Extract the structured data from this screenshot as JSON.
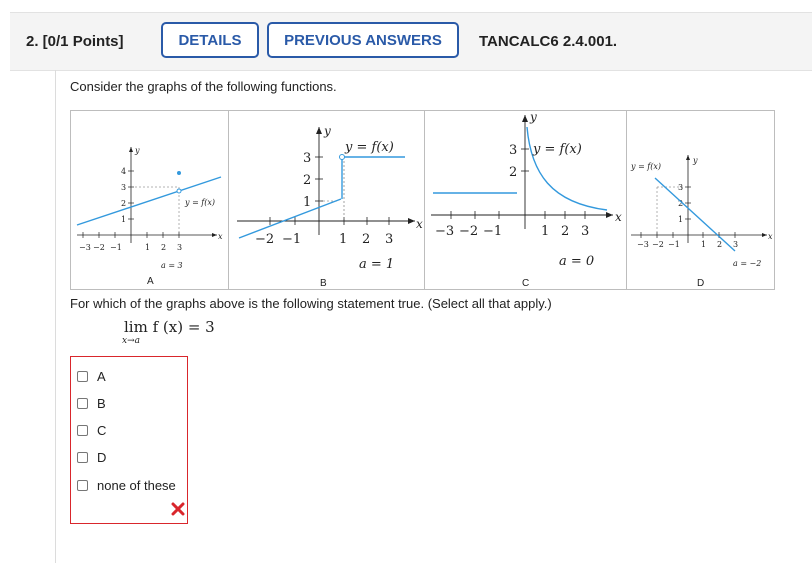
{
  "header": {
    "question_number": "2. [0/1 Points]",
    "details_label": "DETAILS",
    "previous_answers_label": "PREVIOUS ANSWERS",
    "question_code": "TANCALC6 2.4.001."
  },
  "prompt": {
    "intro": "Consider the graphs of the following functions.",
    "question": "For which of the graphs above is the following statement true. (Select all that apply.)",
    "statement_main": "lim  f (x) = 3",
    "statement_sub": "x→a"
  },
  "graphs": [
    {
      "id": "A",
      "caption": "a = 3",
      "func_label": "y = f(x)"
    },
    {
      "id": "B",
      "caption": "a = 1",
      "func_label": "y = f(x)"
    },
    {
      "id": "C",
      "caption": "a = 0",
      "func_label": "y = f(x)"
    },
    {
      "id": "D",
      "caption": "a = −2",
      "func_label": "y = f(x)"
    }
  ],
  "choices": [
    {
      "label": "A",
      "checked": false
    },
    {
      "label": "B",
      "checked": false
    },
    {
      "label": "C",
      "checked": false
    },
    {
      "label": "D",
      "checked": false
    },
    {
      "label": "none of these",
      "checked": false
    }
  ],
  "result": {
    "icon": "incorrect-x-icon",
    "color": "#d9262c"
  },
  "colors": {
    "accent": "#2a5aa8",
    "curve": "#3399dd",
    "error": "#d9262c"
  }
}
